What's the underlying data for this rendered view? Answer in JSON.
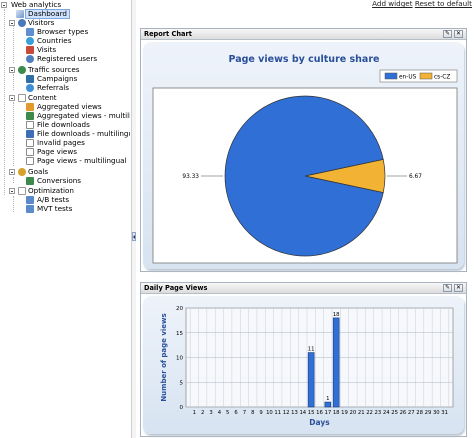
{
  "toolbar": {
    "add_widget": "Add widget",
    "reset": "Reset to default"
  },
  "tree": {
    "root": "Web analytics",
    "dashboard": "Dashboard",
    "visitors": {
      "label": "Visitors",
      "items": [
        "Browser types",
        "Countries",
        "Visits",
        "Registered users"
      ]
    },
    "traffic": {
      "label": "Traffic sources",
      "items": [
        "Campaigns",
        "Referrals"
      ]
    },
    "content": {
      "label": "Content",
      "items": [
        "Aggregated views",
        "Aggregated views - multilingual",
        "File downloads",
        "File downloads - multilingual",
        "Invalid pages",
        "Page views",
        "Page views - multilingual"
      ]
    },
    "goals": {
      "label": "Goals",
      "items": [
        "Conversions"
      ]
    },
    "optimization": {
      "label": "Optimization",
      "items": [
        "A/B tests",
        "MVT tests"
      ]
    }
  },
  "widgets": {
    "report": {
      "title": "Report Chart"
    },
    "daily": {
      "title": "Daily Page Views"
    }
  },
  "chart_data": [
    {
      "type": "pie",
      "title": "Page views by culture share",
      "labels": [
        "en-US",
        "cs-CZ"
      ],
      "values": [
        93.33,
        6.67
      ],
      "colors": [
        "#2f6fd6",
        "#f2b233"
      ],
      "legend": "top-right"
    },
    {
      "type": "bar",
      "xlabel": "Days",
      "ylabel": "Number of page views",
      "categories": [
        "1",
        "2",
        "3",
        "4",
        "5",
        "6",
        "7",
        "8",
        "9",
        "10",
        "11",
        "12",
        "13",
        "14",
        "15",
        "16",
        "17",
        "18",
        "19",
        "20",
        "21",
        "22",
        "23",
        "24",
        "25",
        "26",
        "27",
        "28",
        "29",
        "30",
        "31"
      ],
      "values": [
        0,
        0,
        0,
        0,
        0,
        0,
        0,
        0,
        0,
        0,
        0,
        0,
        0,
        0,
        11,
        0,
        1,
        18,
        0,
        0,
        0,
        0,
        0,
        0,
        0,
        0,
        0,
        0,
        0,
        0,
        0
      ],
      "ylim": [
        0,
        20
      ],
      "yticks": [
        0,
        5,
        10,
        15,
        20
      ],
      "grid": true,
      "color": "#2f6fd6"
    }
  ]
}
